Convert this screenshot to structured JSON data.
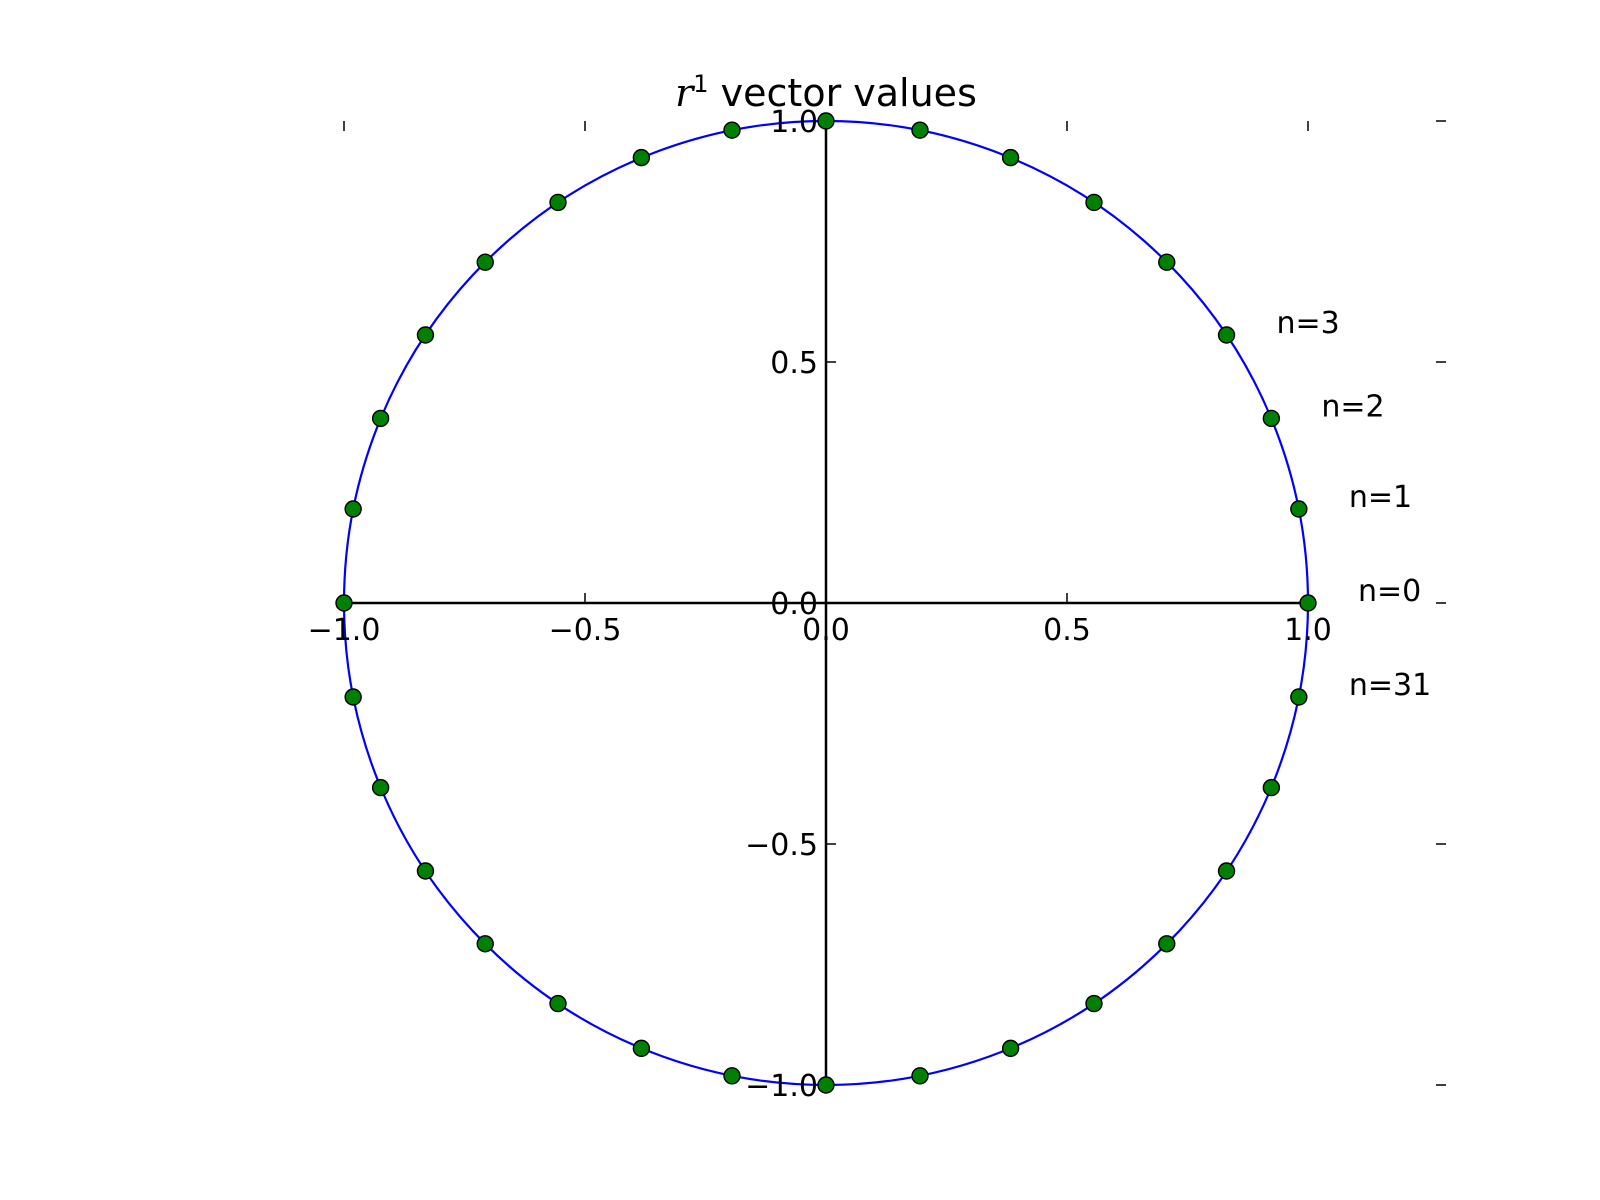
{
  "chart_data": {
    "type": "scatter",
    "title": {
      "symbol": "r",
      "superscript": "1",
      "text": " vector values"
    },
    "xlabel": "",
    "ylabel": "",
    "xlim": [
      -1.0,
      1.0
    ],
    "ylim": [
      -1.0,
      1.0
    ],
    "x_ticks": [
      -1.0,
      -0.5,
      0.0,
      0.5,
      1.0
    ],
    "x_tick_labels": [
      "−1.0",
      "−0.5",
      "0.0",
      "0.5",
      "1.0"
    ],
    "y_ticks": [
      -1.0,
      -0.5,
      0.0,
      0.5,
      1.0
    ],
    "y_tick_labels": [
      "−1.0",
      "−0.5",
      "0.0",
      "0.5",
      "1.0"
    ],
    "grid": false,
    "legend": "none",
    "colors": {
      "circle": "#0000ff",
      "points": "#008000",
      "point_edge": "#000000",
      "axes": "#000000"
    },
    "circle": {
      "center": [
        0,
        0
      ],
      "radius": 1.0
    },
    "points_count": 32,
    "points": [
      [
        1.0,
        0.0
      ],
      [
        0.981,
        0.195
      ],
      [
        0.924,
        0.383
      ],
      [
        0.831,
        0.556
      ],
      [
        0.707,
        0.707
      ],
      [
        0.556,
        0.831
      ],
      [
        0.383,
        0.924
      ],
      [
        0.195,
        0.981
      ],
      [
        0.0,
        1.0
      ],
      [
        -0.195,
        0.981
      ],
      [
        -0.383,
        0.924
      ],
      [
        -0.556,
        0.831
      ],
      [
        -0.707,
        0.707
      ],
      [
        -0.831,
        0.556
      ],
      [
        -0.924,
        0.383
      ],
      [
        -0.981,
        0.195
      ],
      [
        -1.0,
        0.0
      ],
      [
        -0.981,
        -0.195
      ],
      [
        -0.924,
        -0.383
      ],
      [
        -0.831,
        -0.556
      ],
      [
        -0.707,
        -0.707
      ],
      [
        -0.556,
        -0.831
      ],
      [
        -0.383,
        -0.924
      ],
      [
        -0.195,
        -0.981
      ],
      [
        0.0,
        -1.0
      ],
      [
        0.195,
        -0.981
      ],
      [
        0.383,
        -0.924
      ],
      [
        0.556,
        -0.831
      ],
      [
        0.707,
        -0.707
      ],
      [
        0.831,
        -0.556
      ],
      [
        0.924,
        -0.383
      ],
      [
        0.981,
        -0.195
      ]
    ],
    "annotations": [
      {
        "text": "n=0",
        "index": 0
      },
      {
        "text": "n=1",
        "index": 1
      },
      {
        "text": "n=2",
        "index": 2
      },
      {
        "text": "n=3",
        "index": 3
      },
      {
        "text": "n=31",
        "index": 31
      }
    ]
  }
}
